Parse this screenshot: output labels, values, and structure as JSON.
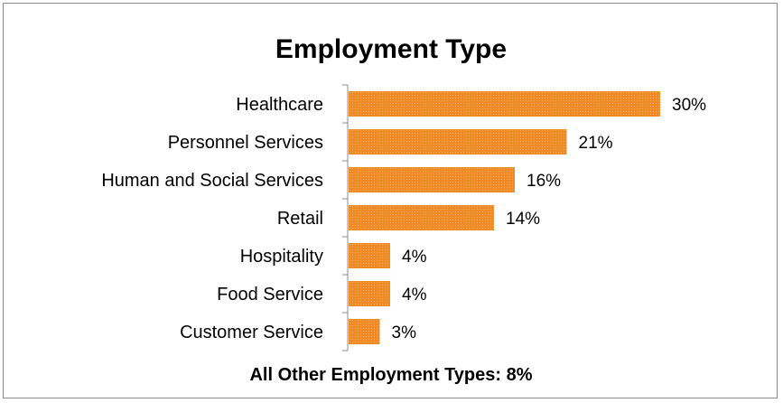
{
  "chart_data": {
    "type": "bar",
    "orientation": "horizontal",
    "title": "Employment Type",
    "categories": [
      "Healthcare",
      "Personnel Services",
      "Human and Social Services",
      "Retail",
      "Hospitality",
      "Food Service",
      "Customer Service"
    ],
    "values": [
      30,
      21,
      16,
      14,
      4,
      4,
      3
    ],
    "value_labels": [
      "30%",
      "21%",
      "16%",
      "14%",
      "4%",
      "4%",
      "3%"
    ],
    "unit": "%",
    "xlim": [
      0,
      30
    ],
    "grid": false,
    "legend": "none",
    "bar_color": "#F08A24",
    "footnote": "All Other Employment Types: 8%"
  }
}
